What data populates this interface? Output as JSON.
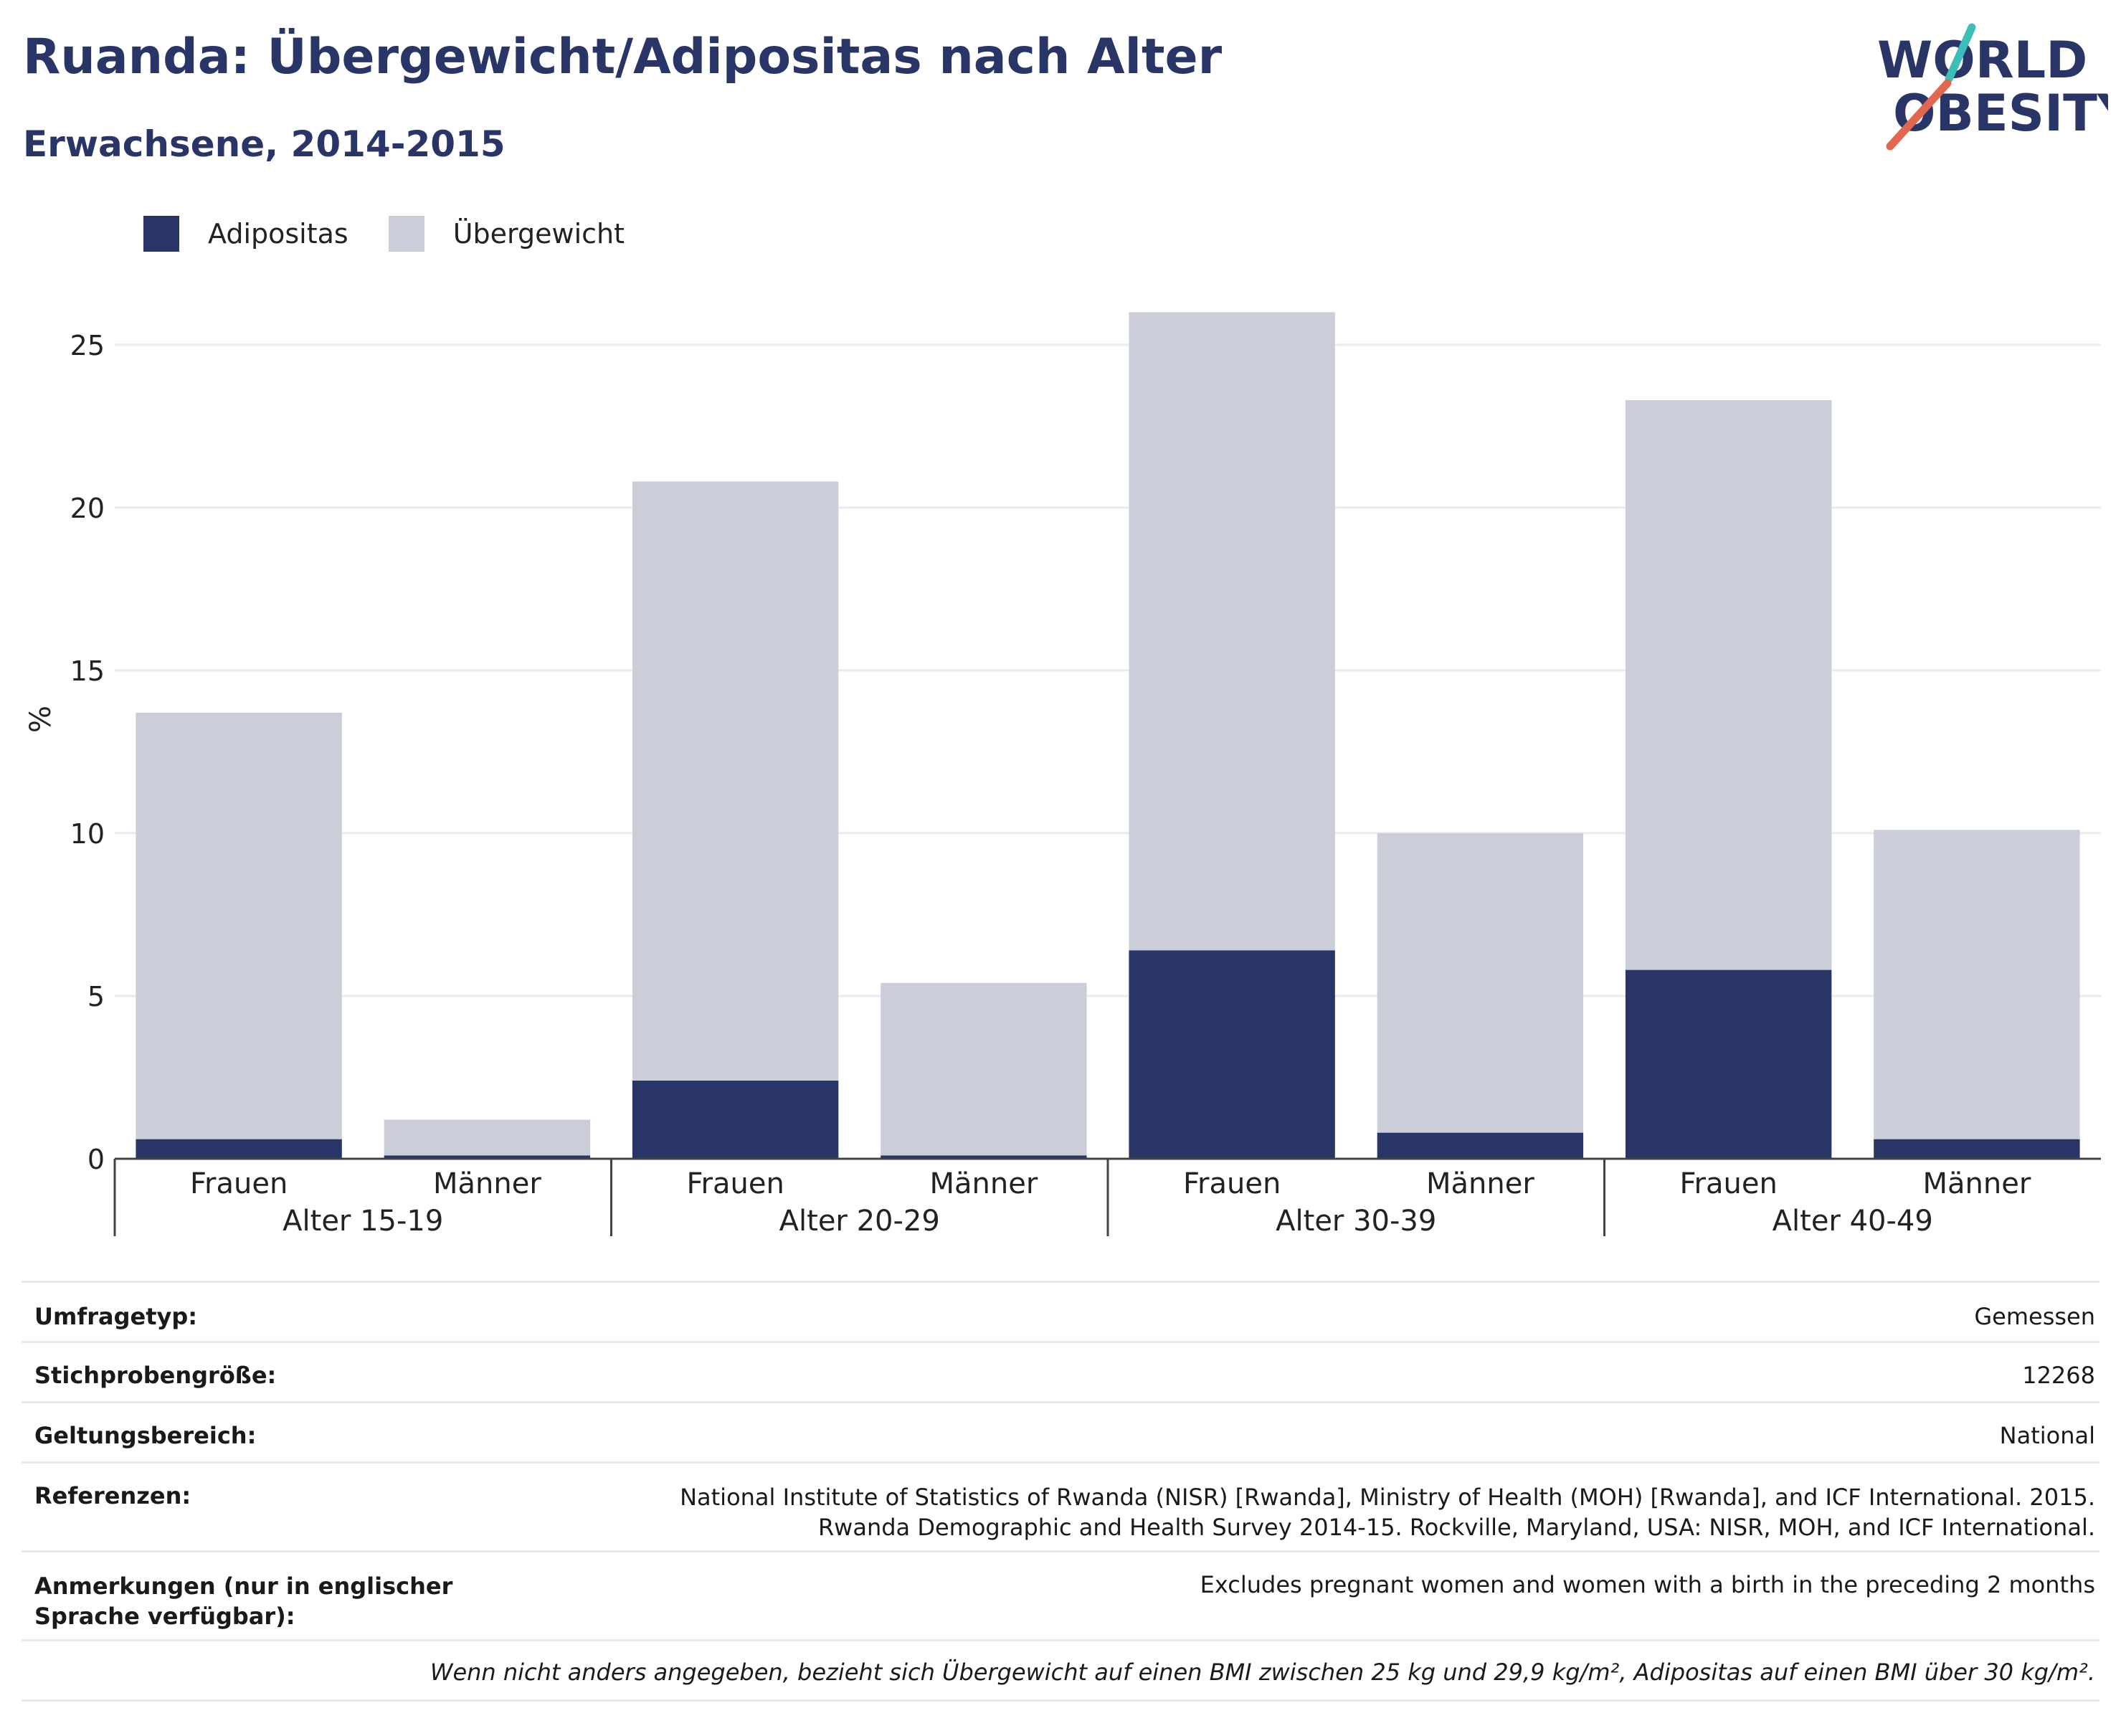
{
  "header": {
    "title": "Ruanda: Übergewicht/Adipositas nach Alter",
    "subtitle": "Erwachsene, 2014-2015"
  },
  "logo": {
    "line1": "WORLD",
    "line2": "OBESITY",
    "slash_colors": [
      "#3bbfb8",
      "#e2674f"
    ]
  },
  "colors": {
    "obesity": "#2a3567",
    "overweight": "#cbcdd9",
    "title": "#2a3567"
  },
  "legend": [
    {
      "label": "Adipositas",
      "color": "#2a3567"
    },
    {
      "label": "Übergewicht",
      "color": "#cbcdd9"
    }
  ],
  "chart_data": {
    "type": "bar",
    "stacked": true,
    "ylabel": "%",
    "ylim": [
      0,
      27
    ],
    "yticks": [
      0,
      5,
      10,
      15,
      20,
      25
    ],
    "grid": true,
    "groups": [
      "Alter 15-19",
      "Alter 20-29",
      "Alter 30-39",
      "Alter 40-49"
    ],
    "categories": [
      "Frauen",
      "Männer",
      "Frauen",
      "Männer",
      "Frauen",
      "Männer",
      "Frauen",
      "Männer"
    ],
    "series": [
      {
        "name": "Adipositas",
        "values": [
          0.6,
          0.1,
          2.4,
          0.1,
          6.4,
          0.8,
          5.8,
          0.6
        ]
      },
      {
        "name": "Übergewicht",
        "values": [
          13.1,
          1.1,
          18.4,
          5.3,
          19.6,
          9.2,
          17.5,
          9.5
        ]
      }
    ]
  },
  "info": {
    "rows": [
      {
        "label": "Umfragetyp:",
        "value": "Gemessen"
      },
      {
        "label": "Stichprobengröße:",
        "value": "12268"
      },
      {
        "label": "Geltungsbereich:",
        "value": "National"
      },
      {
        "label": "Referenzen:",
        "value": "National Institute of Statistics of Rwanda (NISR) [Rwanda], Ministry of Health (MOH) [Rwanda], and ICF International. 2015. Rwanda Demographic and Health Survey 2014-15. Rockville, Maryland, USA: NISR, MOH, and ICF International."
      },
      {
        "label": "Anmerkungen (nur in englischer Sprache verfügbar):",
        "value": "Excludes pregnant women and women with a birth in the preceding 2 months"
      }
    ],
    "footnote": "Wenn nicht anders angegeben, bezieht sich Übergewicht auf einen BMI zwischen 25 kg und 29,9 kg/m², Adipositas auf einen BMI über 30 kg/m²."
  }
}
